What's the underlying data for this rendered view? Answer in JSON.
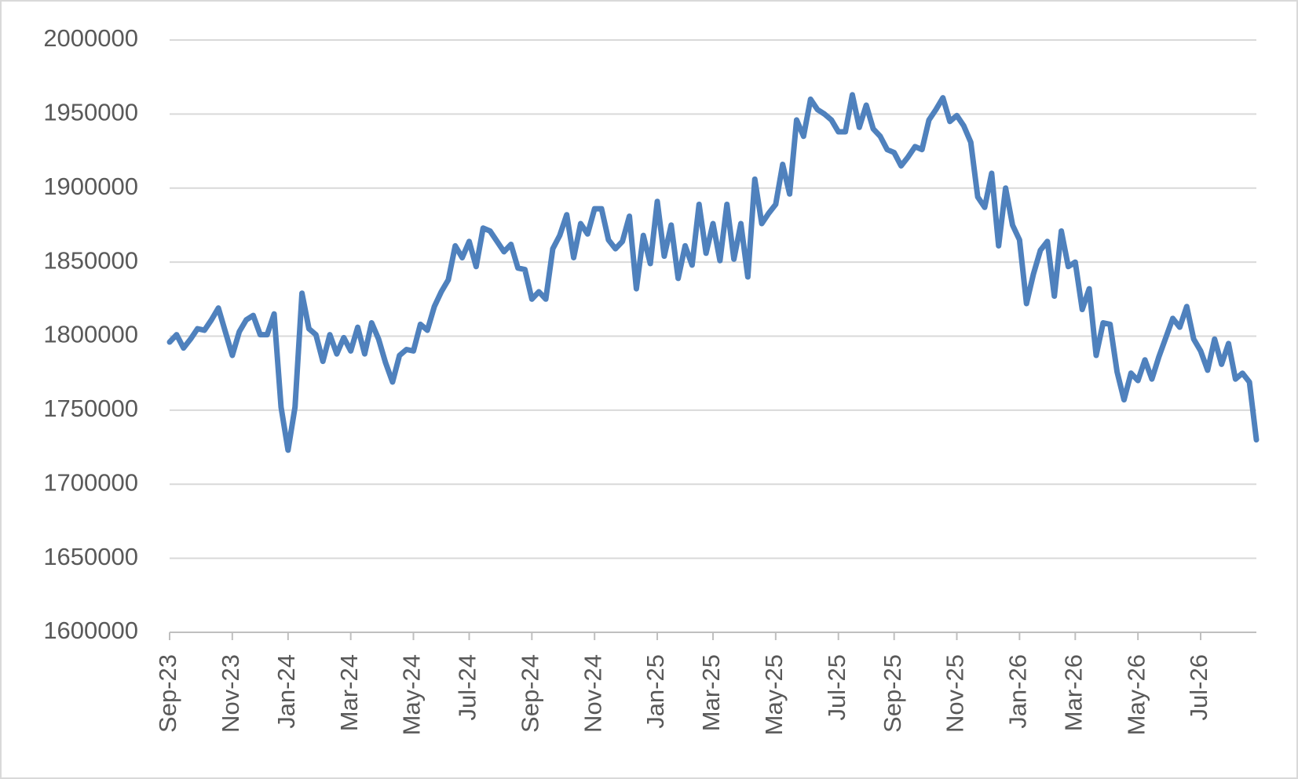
{
  "chart_data": {
    "type": "line",
    "categories": [
      "Sep-23",
      null,
      null,
      null,
      null,
      null,
      null,
      null,
      null,
      "Nov-23",
      null,
      null,
      null,
      null,
      null,
      null,
      null,
      "Jan-24",
      null,
      null,
      null,
      null,
      null,
      null,
      null,
      null,
      "Mar-24",
      null,
      null,
      null,
      null,
      null,
      null,
      null,
      null,
      "May-24",
      null,
      null,
      null,
      null,
      null,
      null,
      null,
      "Jul-24",
      null,
      null,
      null,
      null,
      null,
      null,
      null,
      null,
      "Sep-24",
      null,
      null,
      null,
      null,
      null,
      null,
      null,
      null,
      "Nov-24",
      null,
      null,
      null,
      null,
      null,
      null,
      null,
      null,
      "Jan-25",
      null,
      null,
      null,
      null,
      null,
      null,
      null,
      "Mar-25",
      null,
      null,
      null,
      null,
      null,
      null,
      null,
      null,
      "May-25",
      null,
      null,
      null,
      null,
      null,
      null,
      null,
      null,
      "Jul-25",
      null,
      null,
      null,
      null,
      null,
      null,
      null,
      "Sep-25",
      null,
      null,
      null,
      null,
      null,
      null,
      null,
      null,
      "Nov-25",
      null,
      null,
      null,
      null,
      null,
      null,
      null,
      null,
      "Jan-26",
      null,
      null,
      null,
      null,
      null,
      null,
      null,
      "Mar-26",
      null,
      null,
      null,
      null,
      null,
      null,
      null,
      null,
      "May-26",
      null,
      null,
      null,
      null,
      null,
      null,
      null,
      null,
      "Jul-26",
      null,
      null,
      null,
      null,
      null,
      null,
      null,
      null
    ],
    "series": [
      {
        "color": "#4f81bd",
        "values": [
          1796000,
          1801000,
          1792000,
          1798000,
          1805000,
          1804000,
          1811000,
          1819000,
          1803000,
          1787000,
          1803000,
          1811000,
          1814000,
          1801000,
          1801000,
          1815000,
          1752000,
          1723000,
          1752000,
          1829000,
          1805000,
          1801000,
          1783000,
          1801000,
          1788000,
          1799000,
          1790000,
          1806000,
          1788000,
          1809000,
          1798000,
          1782000,
          1769000,
          1787000,
          1791000,
          1790000,
          1808000,
          1804000,
          1820000,
          1830000,
          1838000,
          1861000,
          1853000,
          1864000,
          1847000,
          1873000,
          1871000,
          1864000,
          1857000,
          1862000,
          1846000,
          1845000,
          1825000,
          1830000,
          1825000,
          1859000,
          1868000,
          1882000,
          1853000,
          1876000,
          1869000,
          1886000,
          1886000,
          1865000,
          1859000,
          1864000,
          1881000,
          1832000,
          1868000,
          1849000,
          1891000,
          1854000,
          1875000,
          1839000,
          1861000,
          1848000,
          1889000,
          1856000,
          1876000,
          1851000,
          1889000,
          1852000,
          1876000,
          1840000,
          1906000,
          1876000,
          1883000,
          1889000,
          1916000,
          1896000,
          1946000,
          1935000,
          1960000,
          1953000,
          1950000,
          1946000,
          1938000,
          1938000,
          1963000,
          1941000,
          1956000,
          1940000,
          1935000,
          1926000,
          1924000,
          1915000,
          1921000,
          1928000,
          1926000,
          1946000,
          1953000,
          1961000,
          1945000,
          1949000,
          1942000,
          1931000,
          1894000,
          1887000,
          1910000,
          1861000,
          1900000,
          1875000,
          1865000,
          1822000,
          1842000,
          1858000,
          1864000,
          1827000,
          1871000,
          1847000,
          1850000,
          1818000,
          1832000,
          1787000,
          1809000,
          1808000,
          1776000,
          1757000,
          1775000,
          1770000,
          1784000,
          1771000,
          1786000,
          1799000,
          1812000,
          1806000,
          1820000,
          1798000,
          1790000,
          1777000,
          1798000,
          1781000,
          1795000,
          1771000,
          1775000,
          1769000,
          1730000
        ]
      }
    ],
    "ylim": [
      1600000,
      2000000
    ],
    "yticks": [
      1600000,
      1650000,
      1700000,
      1750000,
      1800000,
      1850000,
      1900000,
      1950000,
      2000000
    ],
    "grid": true
  }
}
